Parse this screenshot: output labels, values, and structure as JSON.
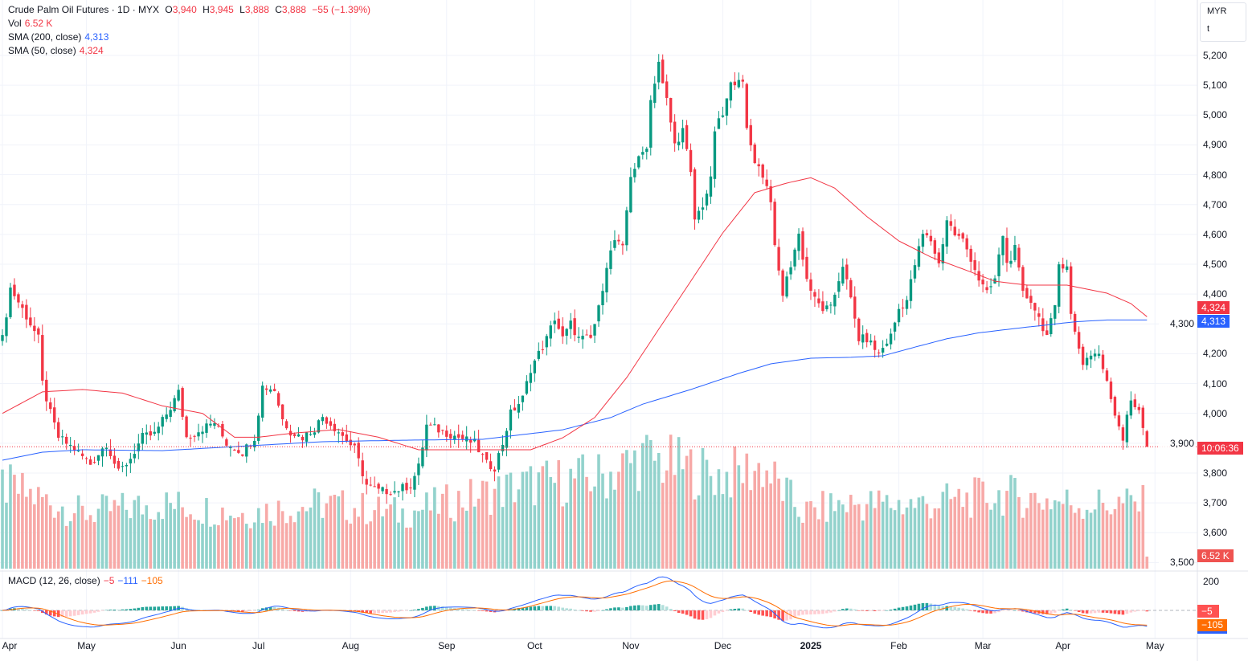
{
  "legend": {
    "symbol": "Crude Palm Oil Futures · 1D · MYX",
    "open_label": "O",
    "open": "3,940",
    "high_label": "H",
    "high": "3,945",
    "low_label": "L",
    "low": "3,888",
    "close_label": "C",
    "close": "3,888",
    "change": "−55 (−1.39%)",
    "vol_label": "Vol",
    "vol": "6.52 K",
    "sma200_label": "SMA (200, close)",
    "sma200": "4,313",
    "sma50_label": "SMA (50, close)",
    "sma50": "4,324",
    "macd_label": "MACD (12, 26, close)",
    "macd_hist": "−5",
    "macd_line": "−111",
    "macd_signal": "−105"
  },
  "unit_box": {
    "currency": "MYR",
    "unit": "t"
  },
  "badges": {
    "sma50": "4,324",
    "sma200": "4,313",
    "countdown": "10:06:36",
    "volume": "6.52 K",
    "macd_hist": "−5",
    "macd_signal": "−105"
  },
  "colors": {
    "up": "#089981",
    "down": "#f23645",
    "up_vol": "#92d2cc",
    "down_vol": "#f7a9a7",
    "sma50": "#f23645",
    "sma200": "#2962ff",
    "macd": "#2962ff",
    "signal": "#ff6d00"
  },
  "chart_data": {
    "type": "candlestick",
    "title": "Crude Palm Oil Futures · 1D · MYX",
    "bars": 287,
    "last_bar": {
      "open": 3940,
      "high": 3945,
      "low": 3888,
      "close": 3888,
      "volume_k": 6.52
    },
    "price_ticks": [
      5200,
      5100,
      5000,
      4900,
      4800,
      4700,
      4600,
      4500,
      4400,
      4300,
      4200,
      4100,
      4000,
      3900,
      3800,
      3700,
      3600,
      3500
    ],
    "price_tick_labels": [
      "5,200",
      "5,100",
      "5,000",
      "4,900",
      "4,800",
      "4,700",
      "4,600",
      "4,500",
      "4,400",
      "4,300",
      "4,200",
      "4,100",
      "4,000",
      "3,900",
      "3,800",
      "3,700",
      "3,600",
      "3,500"
    ],
    "macd_tick": 200,
    "macd_tick_label": "200",
    "time_ticks": [
      {
        "label": "Apr",
        "bar": 0
      },
      {
        "label": "May",
        "bar": 21
      },
      {
        "label": "Jun",
        "bar": 44
      },
      {
        "label": "Jul",
        "bar": 64
      },
      {
        "label": "Aug",
        "bar": 87
      },
      {
        "label": "Sep",
        "bar": 111
      },
      {
        "label": "Oct",
        "bar": 133
      },
      {
        "label": "Nov",
        "bar": 157
      },
      {
        "label": "Dec",
        "bar": 180
      },
      {
        "label": "2025",
        "bar": 202
      },
      {
        "label": "Feb",
        "bar": 224
      },
      {
        "label": "Mar",
        "bar": 245
      },
      {
        "label": "Apr",
        "bar": 265
      },
      {
        "label": "May",
        "bar": 288
      }
    ],
    "close_keypoints": [
      [
        0,
        4250
      ],
      [
        2,
        4420
      ],
      [
        5,
        4350
      ],
      [
        9,
        4250
      ],
      [
        10,
        4100
      ],
      [
        12,
        4000
      ],
      [
        14,
        3920
      ],
      [
        18,
        3880
      ],
      [
        22,
        3830
      ],
      [
        26,
        3900
      ],
      [
        29,
        3800
      ],
      [
        32,
        3850
      ],
      [
        35,
        3920
      ],
      [
        38,
        3930
      ],
      [
        42,
        4020
      ],
      [
        44,
        4070
      ],
      [
        46,
        3920
      ],
      [
        50,
        3950
      ],
      [
        53,
        3970
      ],
      [
        56,
        3900
      ],
      [
        60,
        3870
      ],
      [
        63,
        3920
      ],
      [
        65,
        4090
      ],
      [
        68,
        4080
      ],
      [
        70,
        3980
      ],
      [
        72,
        3940
      ],
      [
        75,
        3920
      ],
      [
        78,
        3950
      ],
      [
        80,
        3990
      ],
      [
        84,
        3940
      ],
      [
        88,
        3880
      ],
      [
        91,
        3760
      ],
      [
        94,
        3740
      ],
      [
        98,
        3740
      ],
      [
        102,
        3760
      ],
      [
        104,
        3820
      ],
      [
        106,
        3960
      ],
      [
        110,
        3940
      ],
      [
        114,
        3920
      ],
      [
        118,
        3900
      ],
      [
        121,
        3830
      ],
      [
        123,
        3820
      ],
      [
        125,
        3900
      ],
      [
        127,
        4000
      ],
      [
        130,
        4050
      ],
      [
        132,
        4150
      ],
      [
        134,
        4200
      ],
      [
        136,
        4250
      ],
      [
        138,
        4320
      ],
      [
        140,
        4250
      ],
      [
        142,
        4300
      ],
      [
        144,
        4250
      ],
      [
        147,
        4250
      ],
      [
        149,
        4350
      ],
      [
        151,
        4500
      ],
      [
        153,
        4580
      ],
      [
        155,
        4550
      ],
      [
        156,
        4680
      ],
      [
        157,
        4800
      ],
      [
        159,
        4850
      ],
      [
        161,
        4900
      ],
      [
        162,
        5050
      ],
      [
        164,
        5180
      ],
      [
        165,
        5100
      ],
      [
        166,
        5050
      ],
      [
        168,
        4900
      ],
      [
        170,
        4950
      ],
      [
        172,
        4800
      ],
      [
        173,
        4650
      ],
      [
        175,
        4700
      ],
      [
        177,
        4780
      ],
      [
        178,
        4950
      ],
      [
        180,
        5000
      ],
      [
        182,
        5100
      ],
      [
        184,
        5130
      ],
      [
        185,
        5100
      ],
      [
        186,
        4950
      ],
      [
        188,
        4850
      ],
      [
        190,
        4800
      ],
      [
        192,
        4720
      ],
      [
        193,
        4550
      ],
      [
        195,
        4400
      ],
      [
        197,
        4500
      ],
      [
        199,
        4600
      ],
      [
        201,
        4450
      ],
      [
        203,
        4380
      ],
      [
        205,
        4350
      ],
      [
        207,
        4350
      ],
      [
        210,
        4500
      ],
      [
        212,
        4380
      ],
      [
        214,
        4250
      ],
      [
        216,
        4250
      ],
      [
        219,
        4200
      ],
      [
        222,
        4260
      ],
      [
        224,
        4350
      ],
      [
        226,
        4380
      ],
      [
        228,
        4500
      ],
      [
        230,
        4600
      ],
      [
        232,
        4580
      ],
      [
        234,
        4500
      ],
      [
        236,
        4650
      ],
      [
        238,
        4600
      ],
      [
        240,
        4580
      ],
      [
        242,
        4520
      ],
      [
        244,
        4450
      ],
      [
        246,
        4400
      ],
      [
        248,
        4450
      ],
      [
        250,
        4600
      ],
      [
        251,
        4500
      ],
      [
        253,
        4550
      ],
      [
        255,
        4400
      ],
      [
        257,
        4380
      ],
      [
        259,
        4320
      ],
      [
        261,
        4260
      ],
      [
        263,
        4350
      ],
      [
        264,
        4500
      ],
      [
        266,
        4500
      ],
      [
        267,
        4330
      ],
      [
        268,
        4270
      ],
      [
        270,
        4170
      ],
      [
        272,
        4200
      ],
      [
        274,
        4200
      ],
      [
        276,
        4100
      ],
      [
        278,
        4000
      ],
      [
        280,
        3920
      ],
      [
        281,
        4000
      ],
      [
        282,
        4050
      ],
      [
        284,
        4000
      ],
      [
        285,
        3950
      ],
      [
        286,
        3888
      ]
    ],
    "sma50_keypoints": [
      [
        0,
        4000
      ],
      [
        10,
        4072
      ],
      [
        20,
        4080
      ],
      [
        30,
        4068
      ],
      [
        40,
        4025
      ],
      [
        50,
        4000
      ],
      [
        58,
        3920
      ],
      [
        64,
        3920
      ],
      [
        72,
        3933
      ],
      [
        84,
        3946
      ],
      [
        94,
        3920
      ],
      [
        104,
        3878
      ],
      [
        120,
        3878
      ],
      [
        132,
        3878
      ],
      [
        140,
        3918
      ],
      [
        148,
        3986
      ],
      [
        156,
        4120
      ],
      [
        164,
        4282
      ],
      [
        172,
        4443
      ],
      [
        180,
        4605
      ],
      [
        188,
        4740
      ],
      [
        196,
        4772
      ],
      [
        202,
        4790
      ],
      [
        208,
        4755
      ],
      [
        216,
        4660
      ],
      [
        224,
        4578
      ],
      [
        232,
        4524
      ],
      [
        240,
        4484
      ],
      [
        248,
        4443
      ],
      [
        256,
        4430
      ],
      [
        266,
        4430
      ],
      [
        276,
        4403
      ],
      [
        282,
        4368
      ],
      [
        286,
        4324
      ]
    ],
    "sma200_keypoints": [
      [
        0,
        3843
      ],
      [
        10,
        3870
      ],
      [
        20,
        3878
      ],
      [
        40,
        3875
      ],
      [
        60,
        3890
      ],
      [
        80,
        3905
      ],
      [
        100,
        3910
      ],
      [
        120,
        3913
      ],
      [
        140,
        3945
      ],
      [
        152,
        3986
      ],
      [
        160,
        4031
      ],
      [
        172,
        4080
      ],
      [
        184,
        4134
      ],
      [
        192,
        4166
      ],
      [
        202,
        4185
      ],
      [
        212,
        4188
      ],
      [
        220,
        4193
      ],
      [
        228,
        4222
      ],
      [
        236,
        4250
      ],
      [
        244,
        4270
      ],
      [
        252,
        4283
      ],
      [
        260,
        4295
      ],
      [
        268,
        4307
      ],
      [
        276,
        4313
      ],
      [
        286,
        4313
      ]
    ],
    "volume_keypoints_k": [
      [
        0,
        45
      ],
      [
        20,
        30
      ],
      [
        40,
        35
      ],
      [
        60,
        30
      ],
      [
        80,
        35
      ],
      [
        100,
        30
      ],
      [
        120,
        40
      ],
      [
        130,
        45
      ],
      [
        150,
        50
      ],
      [
        160,
        60
      ],
      [
        170,
        55
      ],
      [
        180,
        50
      ],
      [
        190,
        55
      ],
      [
        200,
        30
      ],
      [
        210,
        35
      ],
      [
        230,
        35
      ],
      [
        250,
        40
      ],
      [
        270,
        35
      ],
      [
        285,
        35
      ],
      [
        286,
        6.52
      ]
    ],
    "macd": {
      "hist": -5,
      "macd": -111,
      "signal": -105
    }
  }
}
